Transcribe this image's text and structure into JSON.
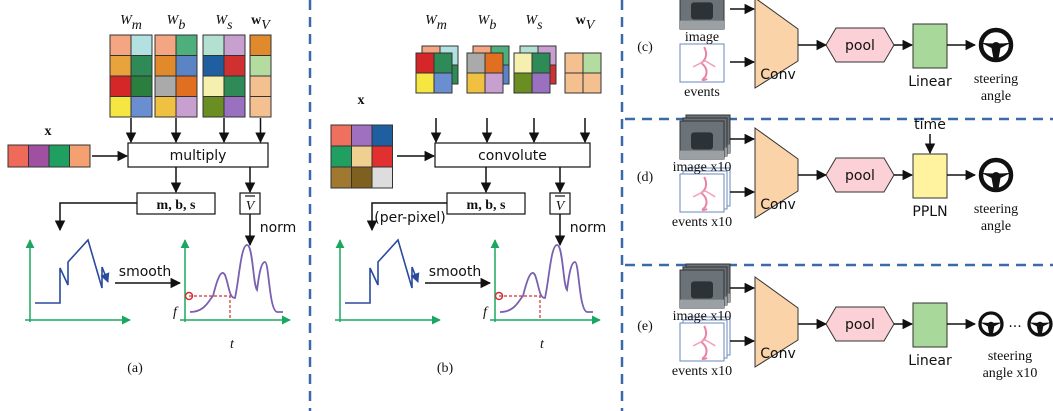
{
  "panel_a": {
    "weights": [
      {
        "base": "W",
        "sub": "m"
      },
      {
        "base": "W",
        "sub": "b"
      },
      {
        "base": "W",
        "sub": "s"
      },
      {
        "base": "w",
        "sub": "V"
      }
    ],
    "input": "x",
    "operation": "multiply",
    "params": "m, b, s",
    "norm_symbol": "V",
    "norm": "norm",
    "smooth": "smooth",
    "y_axis": "f",
    "x_axis": "t",
    "label": "(a)"
  },
  "panel_b": {
    "weights": [
      {
        "base": "W",
        "sub": "m"
      },
      {
        "base": "W",
        "sub": "b"
      },
      {
        "base": "W",
        "sub": "s"
      },
      {
        "base": "w",
        "sub": "V"
      }
    ],
    "input": "x",
    "operation": "convolute",
    "per_pixel": "(per-pixel)",
    "params": "m, b, s",
    "norm_symbol": "V",
    "norm": "norm",
    "smooth": "smooth",
    "y_axis": "f",
    "x_axis": "t",
    "label": "(b)"
  },
  "panel_c": {
    "inputs": [
      "image",
      "events"
    ],
    "conv": "Conv",
    "pool": "pool",
    "head": "Linear",
    "output": [
      "steering",
      "angle"
    ],
    "label": "(c)"
  },
  "panel_d": {
    "inputs": [
      "image x10",
      "events x10"
    ],
    "conv": "Conv",
    "pool": "pool",
    "time": "time",
    "head": "PPLN",
    "output": [
      "steering",
      "angle"
    ],
    "label": "(d)"
  },
  "panel_e": {
    "inputs": [
      "image x10",
      "events x10"
    ],
    "conv": "Conv",
    "pool": "pool",
    "head": "Linear",
    "ellipsis": "...",
    "output": [
      "steering",
      "angle x10"
    ],
    "label": "(e)"
  }
}
